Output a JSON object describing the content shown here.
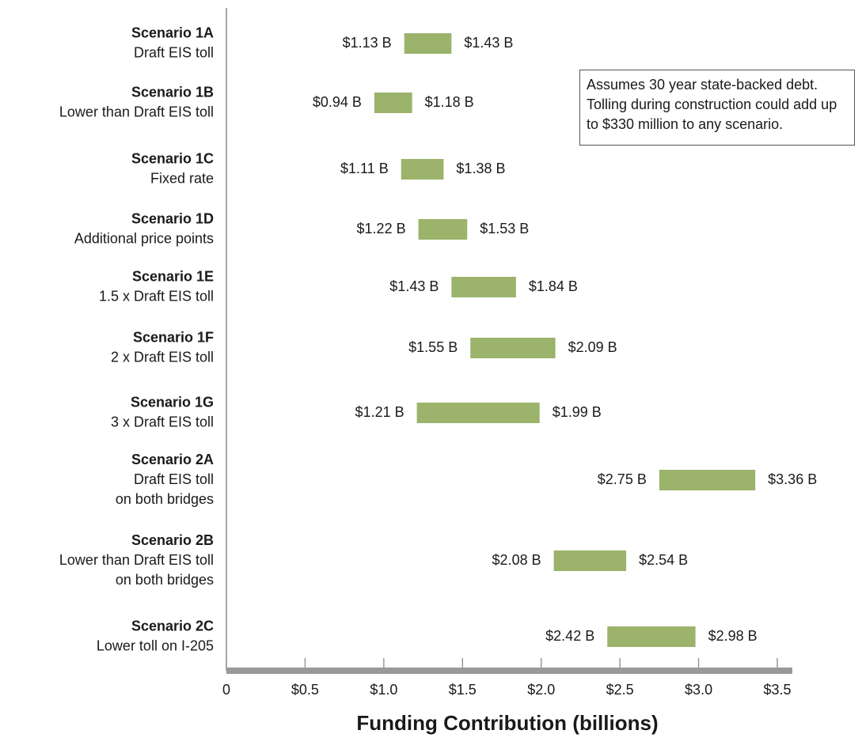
{
  "chart_data": {
    "type": "floating_bar",
    "categories": [
      "Scenario 1A",
      "Scenario 1B",
      "Scenario 1C",
      "Scenario 1D",
      "Scenario 1E",
      "Scenario 1F",
      "Scenario 1G",
      "Scenario 2A",
      "Scenario 2B",
      "Scenario 2C"
    ],
    "descriptions": [
      [
        "Draft EIS toll"
      ],
      [
        "Lower than Draft EIS toll"
      ],
      [
        "Fixed rate"
      ],
      [
        "Additional price points"
      ],
      [
        "1.5 x Draft EIS toll"
      ],
      [
        "2 x Draft EIS toll"
      ],
      [
        "3 x Draft EIS toll"
      ],
      [
        "Draft EIS toll",
        "on both bridges"
      ],
      [
        "Lower than Draft EIS toll",
        "on both bridges"
      ],
      [
        "Lower toll on I-205"
      ]
    ],
    "low_values": [
      1.13,
      0.94,
      1.11,
      1.22,
      1.43,
      1.55,
      1.21,
      2.75,
      2.08,
      2.42
    ],
    "high_values": [
      1.43,
      1.18,
      1.38,
      1.53,
      1.84,
      2.09,
      1.99,
      3.36,
      2.54,
      2.98
    ],
    "low_value_labels": [
      "$1.13 B",
      "$0.94 B",
      "$1.11 B",
      "$1.22 B",
      "$1.43 B",
      "$1.55 B",
      "$1.21 B",
      "$2.75 B",
      "$2.08 B",
      "$2.42 B"
    ],
    "high_value_labels": [
      "$1.43 B",
      "$1.18 B",
      "$1.38 B",
      "$1.53 B",
      "$1.84 B",
      "$2.09 B",
      "$1.99 B",
      "$3.36 B",
      "$2.54 B",
      "$2.98 B"
    ],
    "color": "#9bb36b",
    "xlabel": "Funding Contribution (billions)",
    "xlim": [
      0,
      3.5
    ],
    "xticks": [
      0,
      {
        "value": 0.5,
        "label": "$0.5"
      },
      {
        "value": 1.0,
        "label": "$1.0"
      },
      {
        "value": 1.5,
        "label": "$1.5"
      },
      {
        "value": 2.0,
        "label": "$2.0"
      },
      {
        "value": 2.5,
        "label": "$2.5"
      },
      {
        "value": 3.0,
        "label": "$3.0"
      },
      {
        "value": 3.5,
        "label": "$3.5"
      }
    ],
    "annotation": "Assumes 30 year state-backed debt. Tolling during construction could add up to $330 million to any scenario."
  }
}
